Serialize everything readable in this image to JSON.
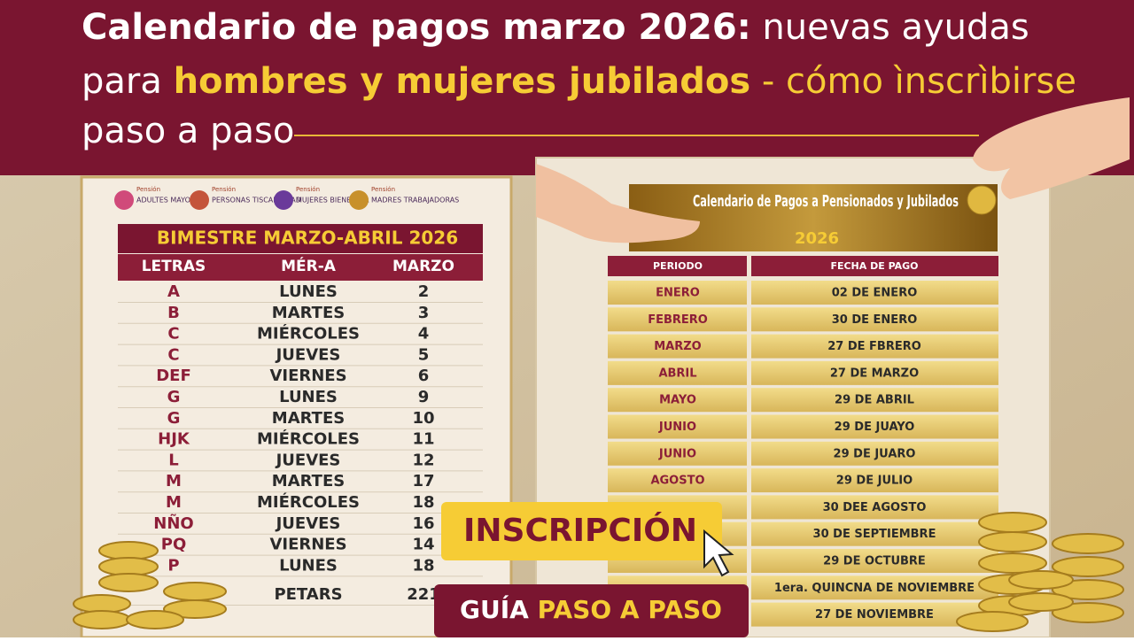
{
  "header": {
    "title": {
      "bold": "Calendario de pagos marzo 2026:",
      "rest": "nuevas ayudas",
      "line2_start": "para",
      "highlight": "hombres y mujeres jubilados",
      "line2_end": "- cómo ìnscrìbirse",
      "line3": "paso a paso"
    }
  },
  "left_panel": {
    "logos": [
      {
        "small": "Pensión",
        "label": "ADULTES MAYORES"
      },
      {
        "small": "Pensión",
        "label": "PERSONAS TISCANCIDAD"
      },
      {
        "small": "Pensión",
        "label": "MUJERES BIENESTAR"
      },
      {
        "small": "Pensión",
        "label": "MADRES TRABAJADORAS"
      }
    ],
    "table": {
      "title": "BIMESTRE MARZO-ABRIL 2026",
      "headers": [
        "LETRAS",
        "MÉR-A",
        "MARZO"
      ],
      "rows": [
        {
          "letter": "A",
          "day": "LUNES",
          "number": "2"
        },
        {
          "letter": "B",
          "day": "MARTES",
          "number": "3"
        },
        {
          "letter": "C",
          "day": "MIÉRCOLES",
          "number": "4"
        },
        {
          "letter": "C",
          "day": "JUEVES",
          "number": "5"
        },
        {
          "letter": "DEF",
          "day": "VIERNES",
          "number": "6"
        },
        {
          "letter": "G",
          "day": "LUNES",
          "number": "9"
        },
        {
          "letter": "G",
          "day": "MARTES",
          "number": "10"
        },
        {
          "letter": "HJK",
          "day": "MIÉRCOLES",
          "number": "11"
        },
        {
          "letter": "L",
          "day": "JUEVES",
          "number": "12"
        },
        {
          "letter": "M",
          "day": "MARTES",
          "number": "17"
        },
        {
          "letter": "M",
          "day": "MIÉRCOLES",
          "number": "18"
        },
        {
          "letter": "NÑO",
          "day": "JUEVES",
          "number": "16"
        },
        {
          "letter": "PQ",
          "day": "VIERNES",
          "number": "14"
        },
        {
          "letter": "P",
          "day": "LUNES",
          "number": "18"
        },
        {
          "day": "PETARS",
          "number": "221"
        }
      ]
    }
  },
  "right_panel": {
    "title": "Calendario de Pagos a Pensionados y Jubilados",
    "year": "2026",
    "table": {
      "headers": [
        "PERIODO",
        "FECHA DE PAGO"
      ],
      "rows": [
        {
          "period": "ENERO",
          "date": "02 DE ENERO"
        },
        {
          "period": "FEBRERO",
          "date": "30 DE ENERO"
        },
        {
          "period": "MARZO",
          "date": "27 DE FBRERO"
        },
        {
          "period": "ABRIL",
          "date": "27 DE MARZO"
        },
        {
          "period": "MAYO",
          "date": "29 DE ABRIL"
        },
        {
          "period": "JUNIO",
          "date": "29 DE JUAYO"
        },
        {
          "period": "JUNIO",
          "date": "29 DE JUARO"
        },
        {
          "period": "AGOSTO",
          "date": "29 DE JULIO"
        },
        {
          "date": "30 DEE AGOSTO"
        },
        {
          "date": "30 DE SEPTIEMBRE"
        },
        {
          "date": "29 DE OCTUBRE"
        },
        {
          "date": "1era. QUINCNA DE NOVIEMBRE"
        },
        {
          "date": "27 DE NOVIEMBRE"
        }
      ]
    }
  },
  "badges": {
    "inscription": "INSCRIPCIÓN",
    "guide_start": "GUÍA",
    "guide_end": "PASO A PASO"
  }
}
